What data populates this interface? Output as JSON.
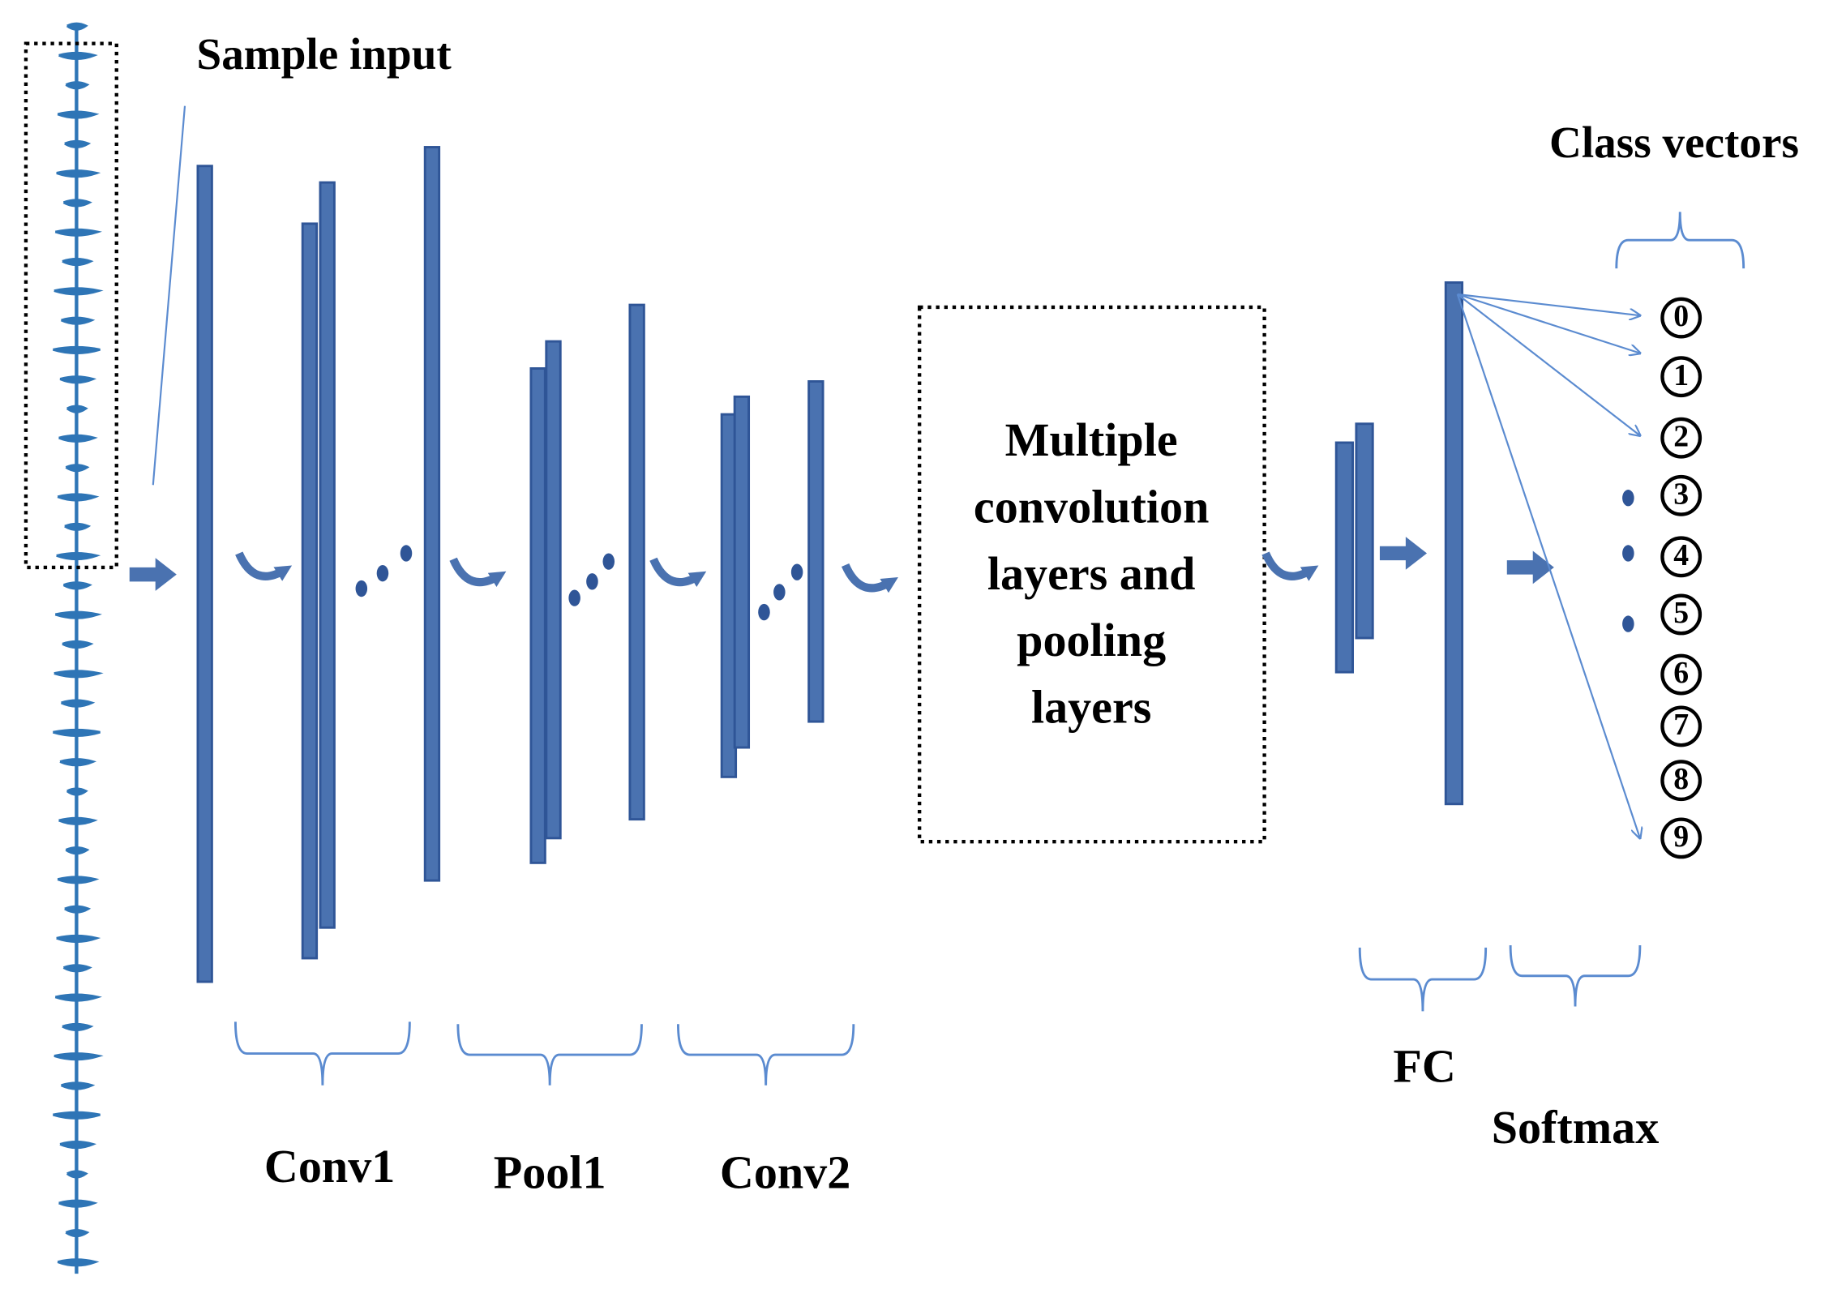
{
  "labels": {
    "sample_input": "Sample input",
    "class_vectors": "Class vectors",
    "conv1": "Conv1",
    "pool1": "Pool1",
    "conv2": "Conv2",
    "fc": "FC",
    "softmax": "Softmax"
  },
  "center_box": {
    "lines": [
      "Multiple",
      "convolution",
      "layers and",
      "pooling",
      "layers"
    ]
  },
  "classes": [
    "0",
    "1",
    "2",
    "3",
    "4",
    "5",
    "6",
    "7",
    "8",
    "9"
  ]
}
